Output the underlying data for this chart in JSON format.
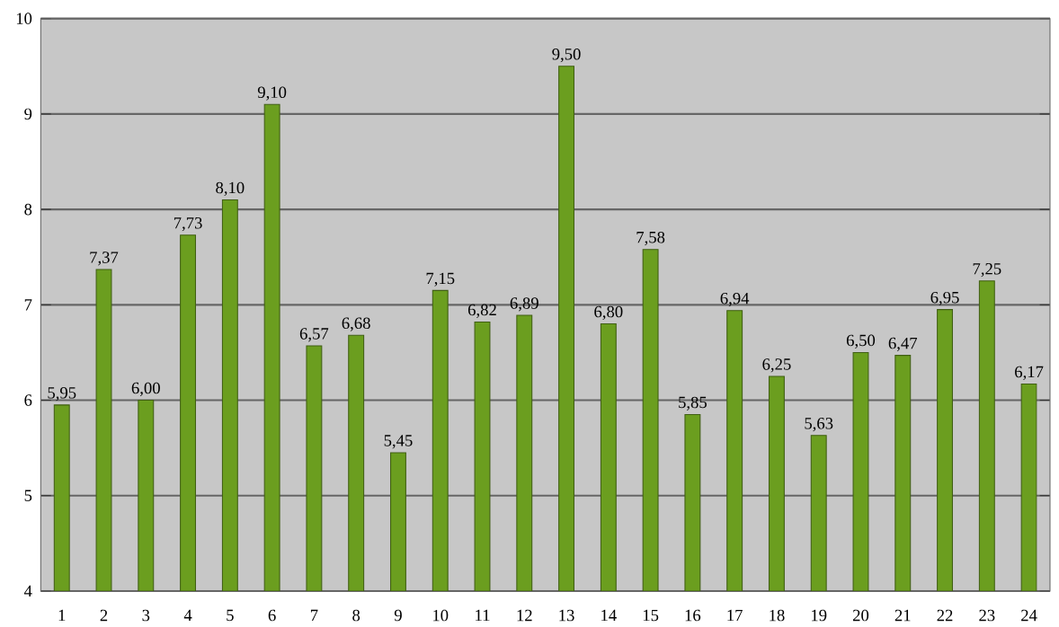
{
  "chart_data": {
    "type": "bar",
    "categories": [
      "1",
      "2",
      "3",
      "4",
      "5",
      "6",
      "7",
      "8",
      "9",
      "10",
      "11",
      "12",
      "13",
      "14",
      "15",
      "16",
      "17",
      "18",
      "19",
      "20",
      "21",
      "22",
      "23",
      "24"
    ],
    "values": [
      5.95,
      7.37,
      6.0,
      7.73,
      8.1,
      9.1,
      6.57,
      6.68,
      5.45,
      7.15,
      6.82,
      6.89,
      9.5,
      6.8,
      7.58,
      5.85,
      6.94,
      6.25,
      5.63,
      6.5,
      6.47,
      6.95,
      7.25,
      6.17
    ],
    "value_labels": [
      "5,95",
      "7,37",
      "6,00",
      "7,73",
      "8,10",
      "9,10",
      "6,57",
      "6,68",
      "5,45",
      "7,15",
      "6,82",
      "6,89",
      "9,50",
      "6,80",
      "7,58",
      "5,85",
      "6,94",
      "6,25",
      "5,63",
      "6,50",
      "6,47",
      "6,95",
      "7,25",
      "6,17"
    ],
    "color": "#6b9e1f",
    "ylim": [
      4,
      10
    ],
    "yticks": [
      4,
      5,
      6,
      7,
      8,
      9,
      10
    ],
    "grid": "y"
  }
}
